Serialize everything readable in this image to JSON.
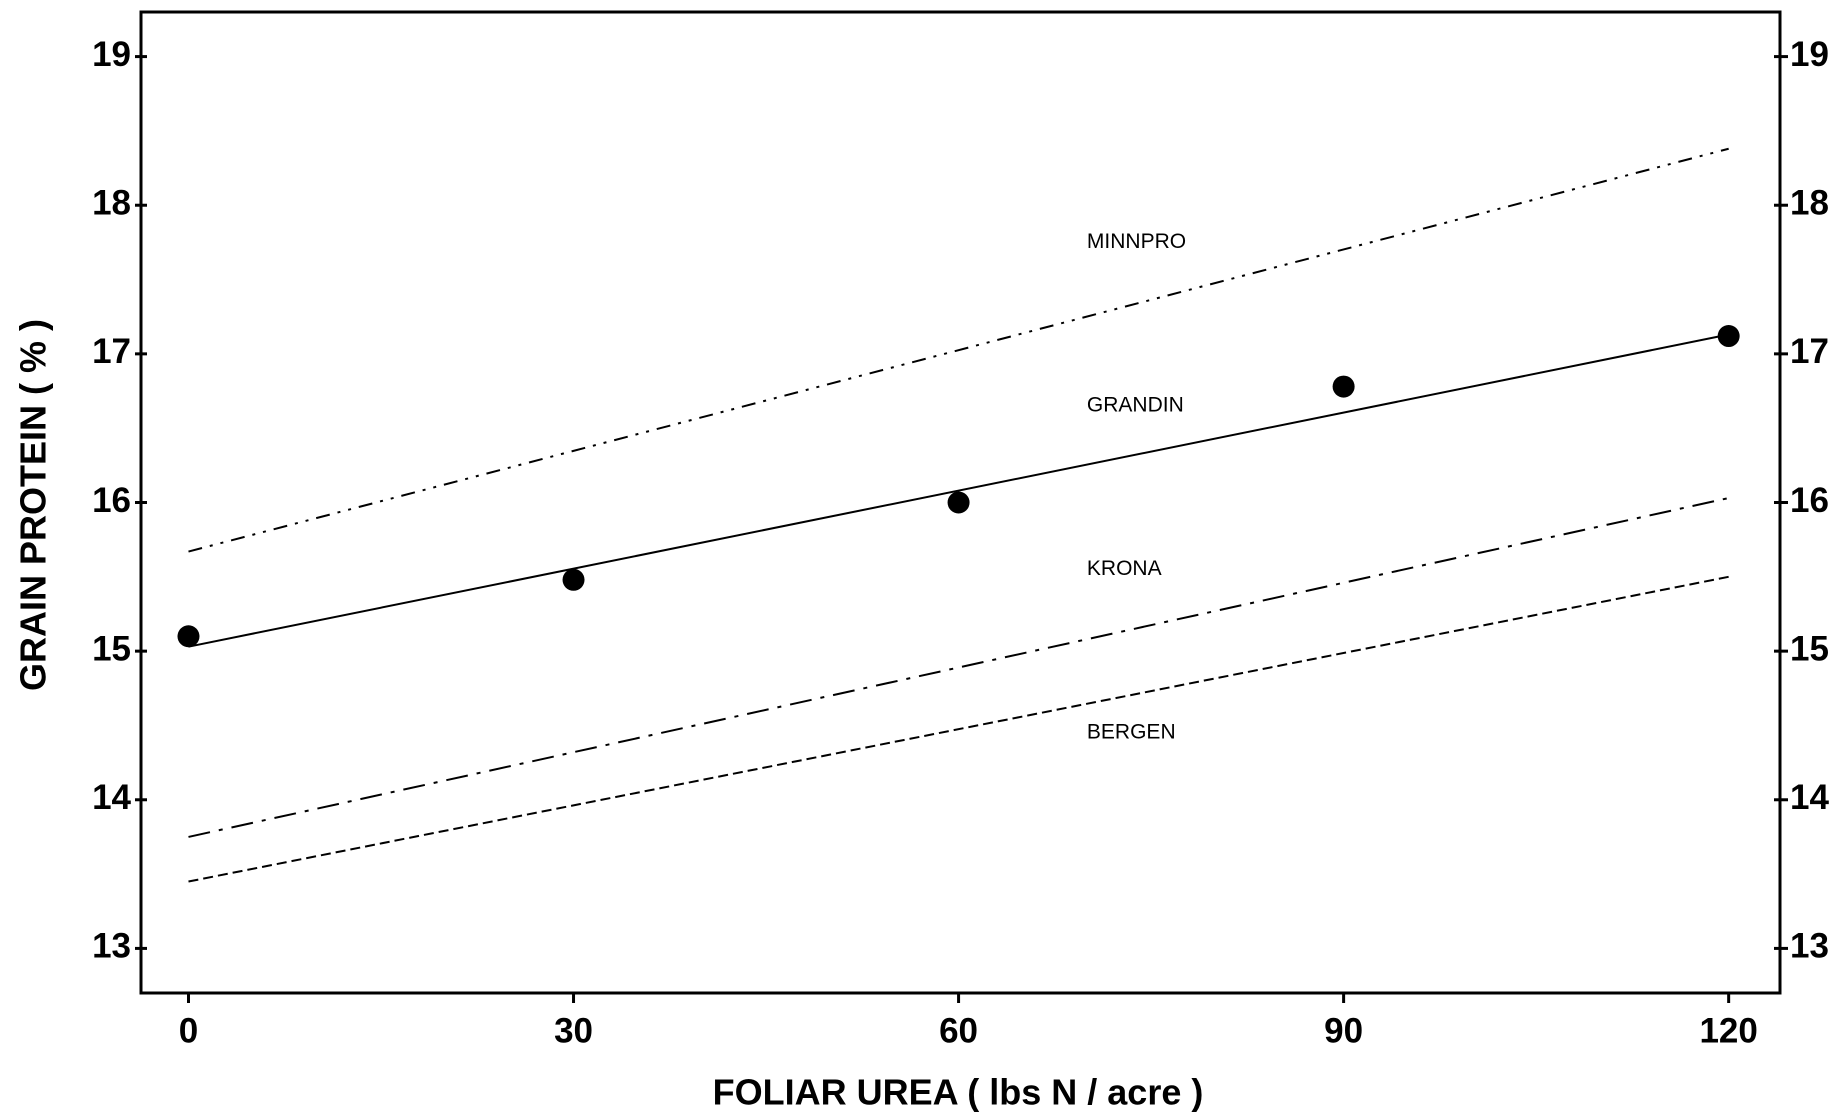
{
  "chart_data": {
    "type": "line",
    "xlabel": "FOLIAR UREA ( lbs N / acre )",
    "ylabel": "GRAIN PROTEIN ( % )",
    "xlim": [
      -3.7,
      124
    ],
    "xticks": [
      0,
      30,
      60,
      90,
      120
    ],
    "ylim": [
      12.7,
      19.3
    ],
    "yticks": [
      13,
      14,
      15,
      16,
      17,
      18,
      19
    ],
    "y2lim": [
      12.7,
      19.3
    ],
    "y2ticks": [
      13,
      14,
      15,
      16,
      17,
      18,
      19
    ],
    "color": "#000000",
    "series": [
      {
        "name": "MINNPRO",
        "style": "dash-dot-dot",
        "x": [
          0,
          120
        ],
        "values": [
          15.67,
          18.38
        ]
      },
      {
        "name": "GRANDIN",
        "style": "solid",
        "x": [
          0,
          120
        ],
        "values": [
          15.03,
          17.13
        ]
      },
      {
        "name": "KRONA",
        "style": "dash-dot",
        "x": [
          0,
          120
        ],
        "values": [
          13.75,
          16.03
        ]
      },
      {
        "name": "BERGEN",
        "style": "dashed",
        "x": [
          0,
          120
        ],
        "values": [
          13.45,
          15.5
        ]
      }
    ],
    "points": {
      "x": [
        0,
        30,
        60,
        90,
        120
      ],
      "values": [
        15.1,
        15.48,
        16.0,
        16.78,
        17.12
      ]
    }
  }
}
